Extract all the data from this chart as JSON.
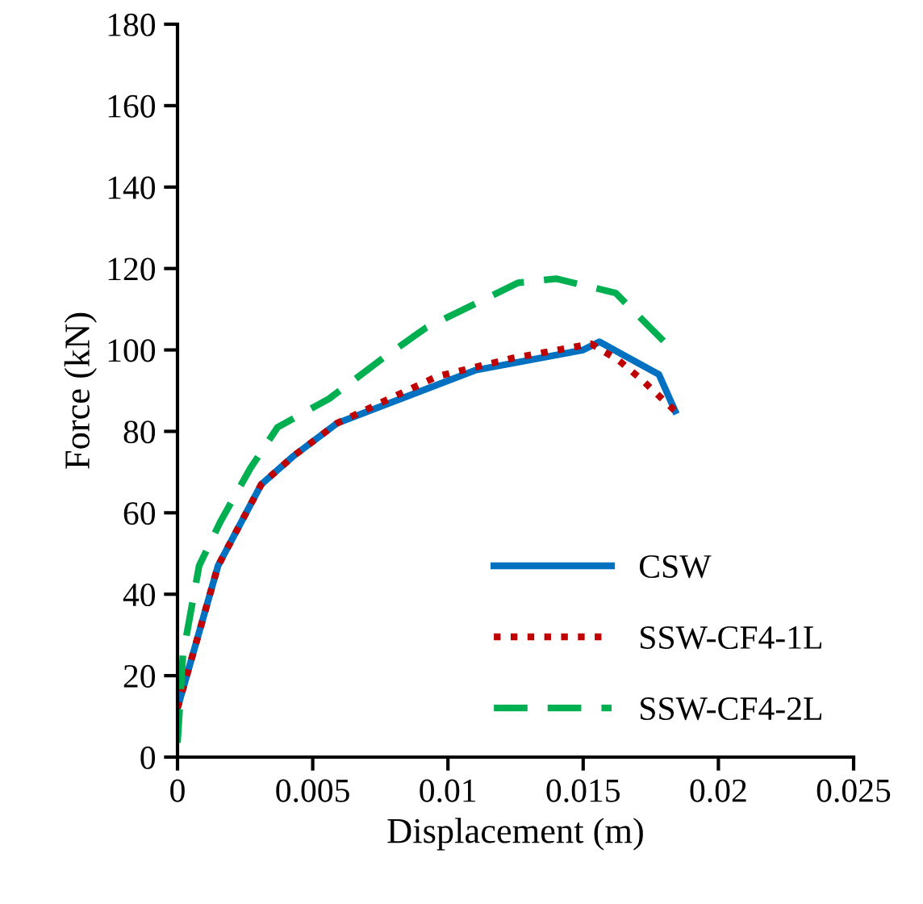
{
  "chart_data": {
    "type": "line",
    "xlabel": "Displacement (m)",
    "ylabel": "Force (kN)",
    "xlim": [
      0,
      0.025
    ],
    "xticks": [
      0,
      0.005,
      0.01,
      0.015,
      0.02,
      0.025
    ],
    "ylim": [
      0,
      180
    ],
    "yticks": [
      0,
      20,
      40,
      60,
      80,
      100,
      120,
      140,
      160,
      180
    ],
    "grid": false,
    "legend": "bottom right",
    "marker": "none",
    "series": [
      {
        "name": "CSW",
        "color": "#0070c0",
        "line_style": "solid",
        "x": [
          0,
          0.0015,
          0.0031,
          0.0043,
          0.0059,
          0.011,
          0.015,
          0.0156,
          0.0178,
          0.0184
        ],
        "values": [
          12,
          47,
          67,
          74,
          82,
          95,
          100,
          102,
          94,
          85
        ]
      },
      {
        "name": "SSW-CF4-1L",
        "color": "#c00000",
        "line_style": "dotted",
        "x": [
          0,
          0.0015,
          0.0031,
          0.0043,
          0.0059,
          0.0096,
          0.0124,
          0.0153,
          0.0163,
          0.0172,
          0.0184
        ],
        "values": [
          12,
          47,
          67,
          74,
          82,
          93.5,
          98,
          101.5,
          97.5,
          92.5,
          85
        ]
      },
      {
        "name": "SSW-CF4-2L",
        "color": "#00b050",
        "line_style": "dashed",
        "x": [
          0,
          0.0002,
          0.0008,
          0.0016,
          0.0027,
          0.0037,
          0.0056,
          0.0076,
          0.0092,
          0.0126,
          0.014,
          0.0162,
          0.018
        ],
        "values": [
          3.5,
          25,
          47,
          58,
          71,
          81,
          88,
          98,
          105.5,
          116.5,
          117.5,
          114,
          102
        ]
      }
    ]
  }
}
